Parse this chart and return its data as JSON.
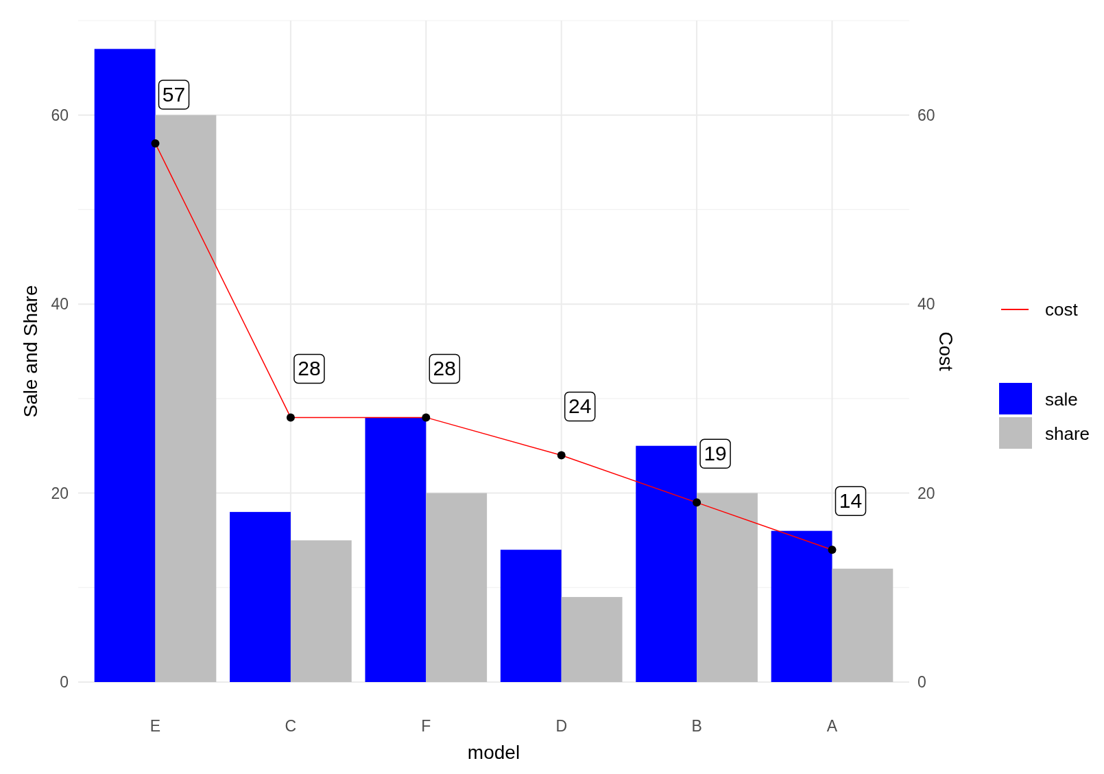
{
  "chart_data": {
    "type": "bar",
    "xlabel": "model",
    "ylabel": "Sale and Share",
    "y2label": "Cost",
    "categories": [
      "E",
      "C",
      "F",
      "D",
      "B",
      "A"
    ],
    "series": [
      {
        "name": "sale",
        "color": "#0000ff",
        "values": [
          67,
          18,
          28,
          14,
          25,
          16
        ]
      },
      {
        "name": "share",
        "color": "#bebebe",
        "values": [
          60,
          15,
          20,
          9,
          20,
          12
        ]
      },
      {
        "name": "cost",
        "type": "line",
        "axis": "y2",
        "color": "#ff0000",
        "marker": "circle",
        "values": [
          57,
          28,
          28,
          24,
          19,
          14
        ],
        "value_labels": [
          "57",
          "28",
          "28",
          "24",
          "19",
          "14"
        ]
      }
    ],
    "ylim": [
      0,
      70
    ],
    "yticks": [
      0,
      20,
      40,
      60
    ],
    "y2lim": [
      0,
      70
    ],
    "y2ticks": [
      0,
      20,
      40,
      60
    ],
    "grid": true,
    "legend": "right"
  }
}
